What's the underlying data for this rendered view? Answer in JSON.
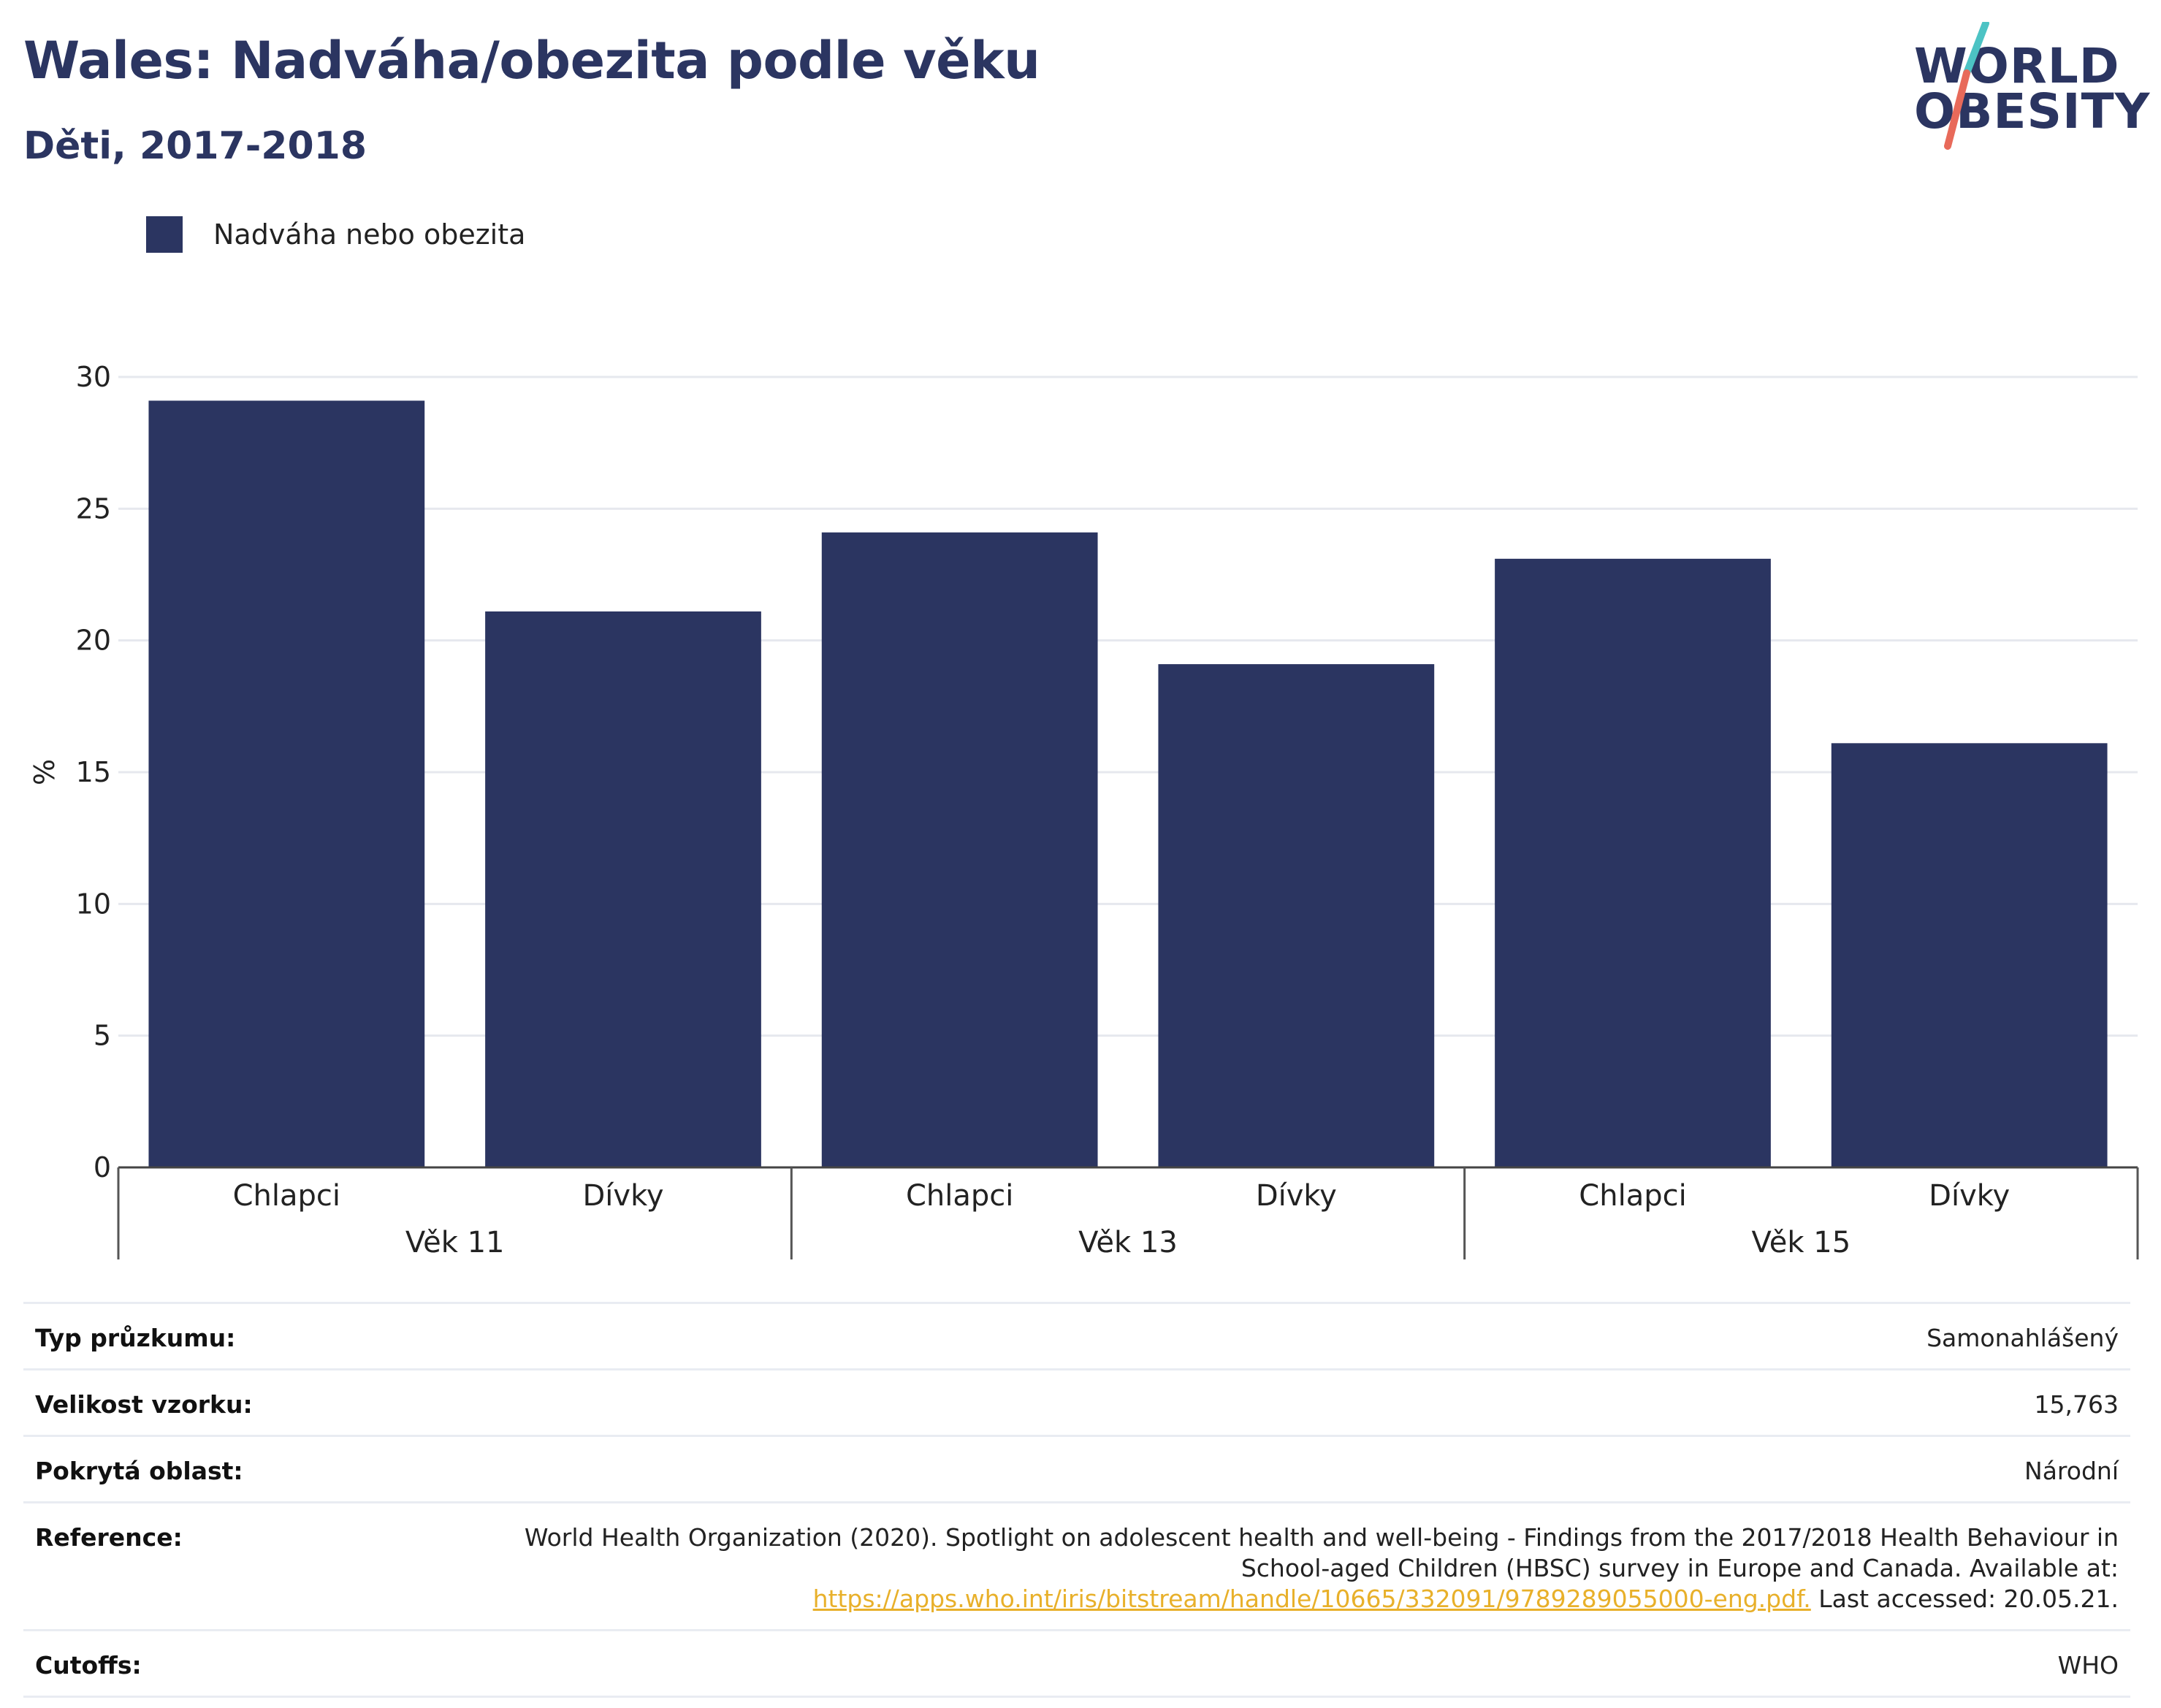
{
  "header": {
    "title": "Wales: Nadváha/obezita podle věku",
    "subtitle": "Děti, 2017-2018"
  },
  "logo": {
    "line1": "WORLD",
    "line2": "OBESITY",
    "slash_colors": [
      "#4cc3c4",
      "#e86a5a"
    ]
  },
  "legend": {
    "label": "Nadváha nebo obezita",
    "color": "#2b3561"
  },
  "chart_data": {
    "type": "bar",
    "ylabel": "%",
    "ylim": [
      0,
      30
    ],
    "yticks": [
      0,
      5,
      10,
      15,
      20,
      25,
      30
    ],
    "grid": true,
    "legend_placement": "top-left",
    "categories": [
      "Chlapci",
      "Dívky",
      "Chlapci",
      "Dívky",
      "Chlapci",
      "Dívky"
    ],
    "groups": [
      {
        "label": "Věk 11",
        "categories": [
          "Chlapci",
          "Dívky"
        ]
      },
      {
        "label": "Věk 13",
        "categories": [
          "Chlapci",
          "Dívky"
        ]
      },
      {
        "label": "Věk 15",
        "categories": [
          "Chlapci",
          "Dívky"
        ]
      }
    ],
    "series": [
      {
        "name": "Nadváha nebo obezita",
        "color": "#2b3561",
        "values": [
          29.1,
          21.1,
          24.1,
          19.1,
          23.1,
          16.1
        ]
      }
    ]
  },
  "info": {
    "survey_type": {
      "label": "Typ průzkumu:",
      "value": "Samonahlášený"
    },
    "sample_size": {
      "label": "Velikost vzorku:",
      "value": "15,763"
    },
    "area": {
      "label": "Pokrytá oblast:",
      "value": "Národní"
    },
    "reference": {
      "label": "Reference:",
      "text_line1": "World Health Organization (2020). Spotlight on adolescent health and well-being - Findings from the 2017/2018 Health Behaviour in",
      "text_line2": "School-aged Children (HBSC) survey in Europe and Canada. Available at:",
      "link": "https://apps.who.int/iris/bitstream/handle/10665/332091/9789289055000-eng.pdf.",
      "after_link": " Last accessed: 20.05.21."
    },
    "cutoffs": {
      "label": "Cutoffs:",
      "value": "WHO"
    }
  }
}
